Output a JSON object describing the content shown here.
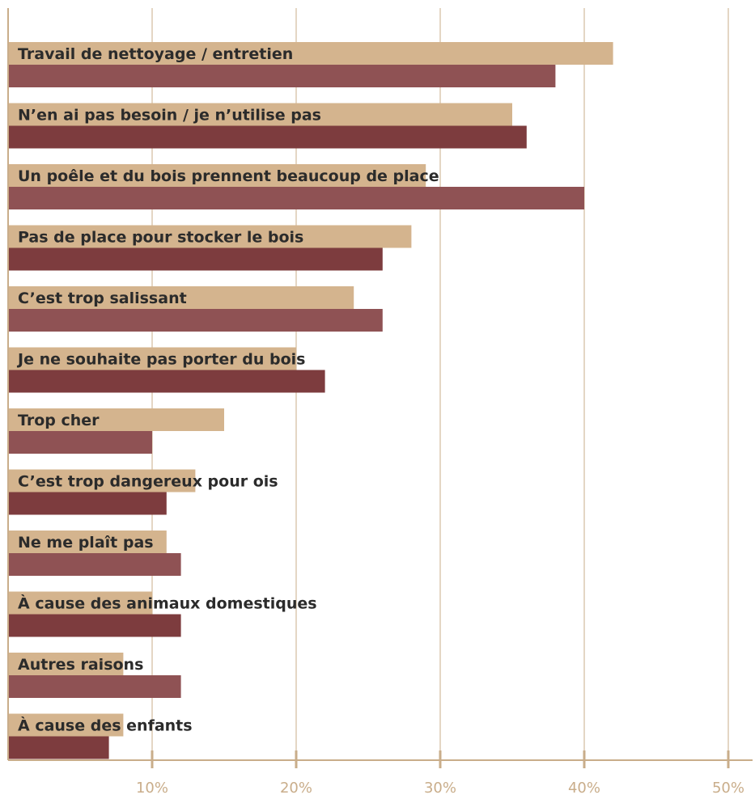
{
  "chart_data": {
    "type": "bar",
    "orientation": "horizontal",
    "title": "",
    "xlabel": "",
    "ylabel": "",
    "xlim": [
      0,
      50
    ],
    "xticks": [
      10,
      20,
      30,
      40,
      50
    ],
    "xtick_labels": [
      "10%",
      "20%",
      "30%",
      "40%",
      "50%"
    ],
    "grid": true,
    "legend": "none",
    "categories": [
      "Travail de nettoyage / entretien",
      "N’en ai pas besoin / je n’utilise pas",
      "Un poêle et du bois prennent beaucoup de place",
      "Pas de place pour stocker le bois",
      "C’est trop salissant",
      "Je ne souhaite pas porter du bois",
      "Trop cher",
      "C’est trop dangereux pour ois",
      "Ne me plaît pas",
      "À cause des animaux domestiques",
      "Autres raisons",
      "À cause des enfants"
    ],
    "series": [
      {
        "color": "#d4b48e",
        "values": [
          42,
          35,
          29,
          28,
          24,
          20,
          15,
          13,
          11,
          10,
          8,
          8
        ]
      },
      {
        "color": "#8a4a4c",
        "values": [
          38,
          36,
          40,
          26,
          26,
          22,
          10,
          11,
          12,
          12,
          12,
          7
        ]
      }
    ]
  },
  "colors": {
    "axis": "#c9ad8a",
    "grid": "#c9ad8a",
    "bar_light": "#d4b48e",
    "bar_dark_a": "#8f5254",
    "bar_dark_b": "#7d3c3e",
    "label_text": "#2b2b2b"
  }
}
